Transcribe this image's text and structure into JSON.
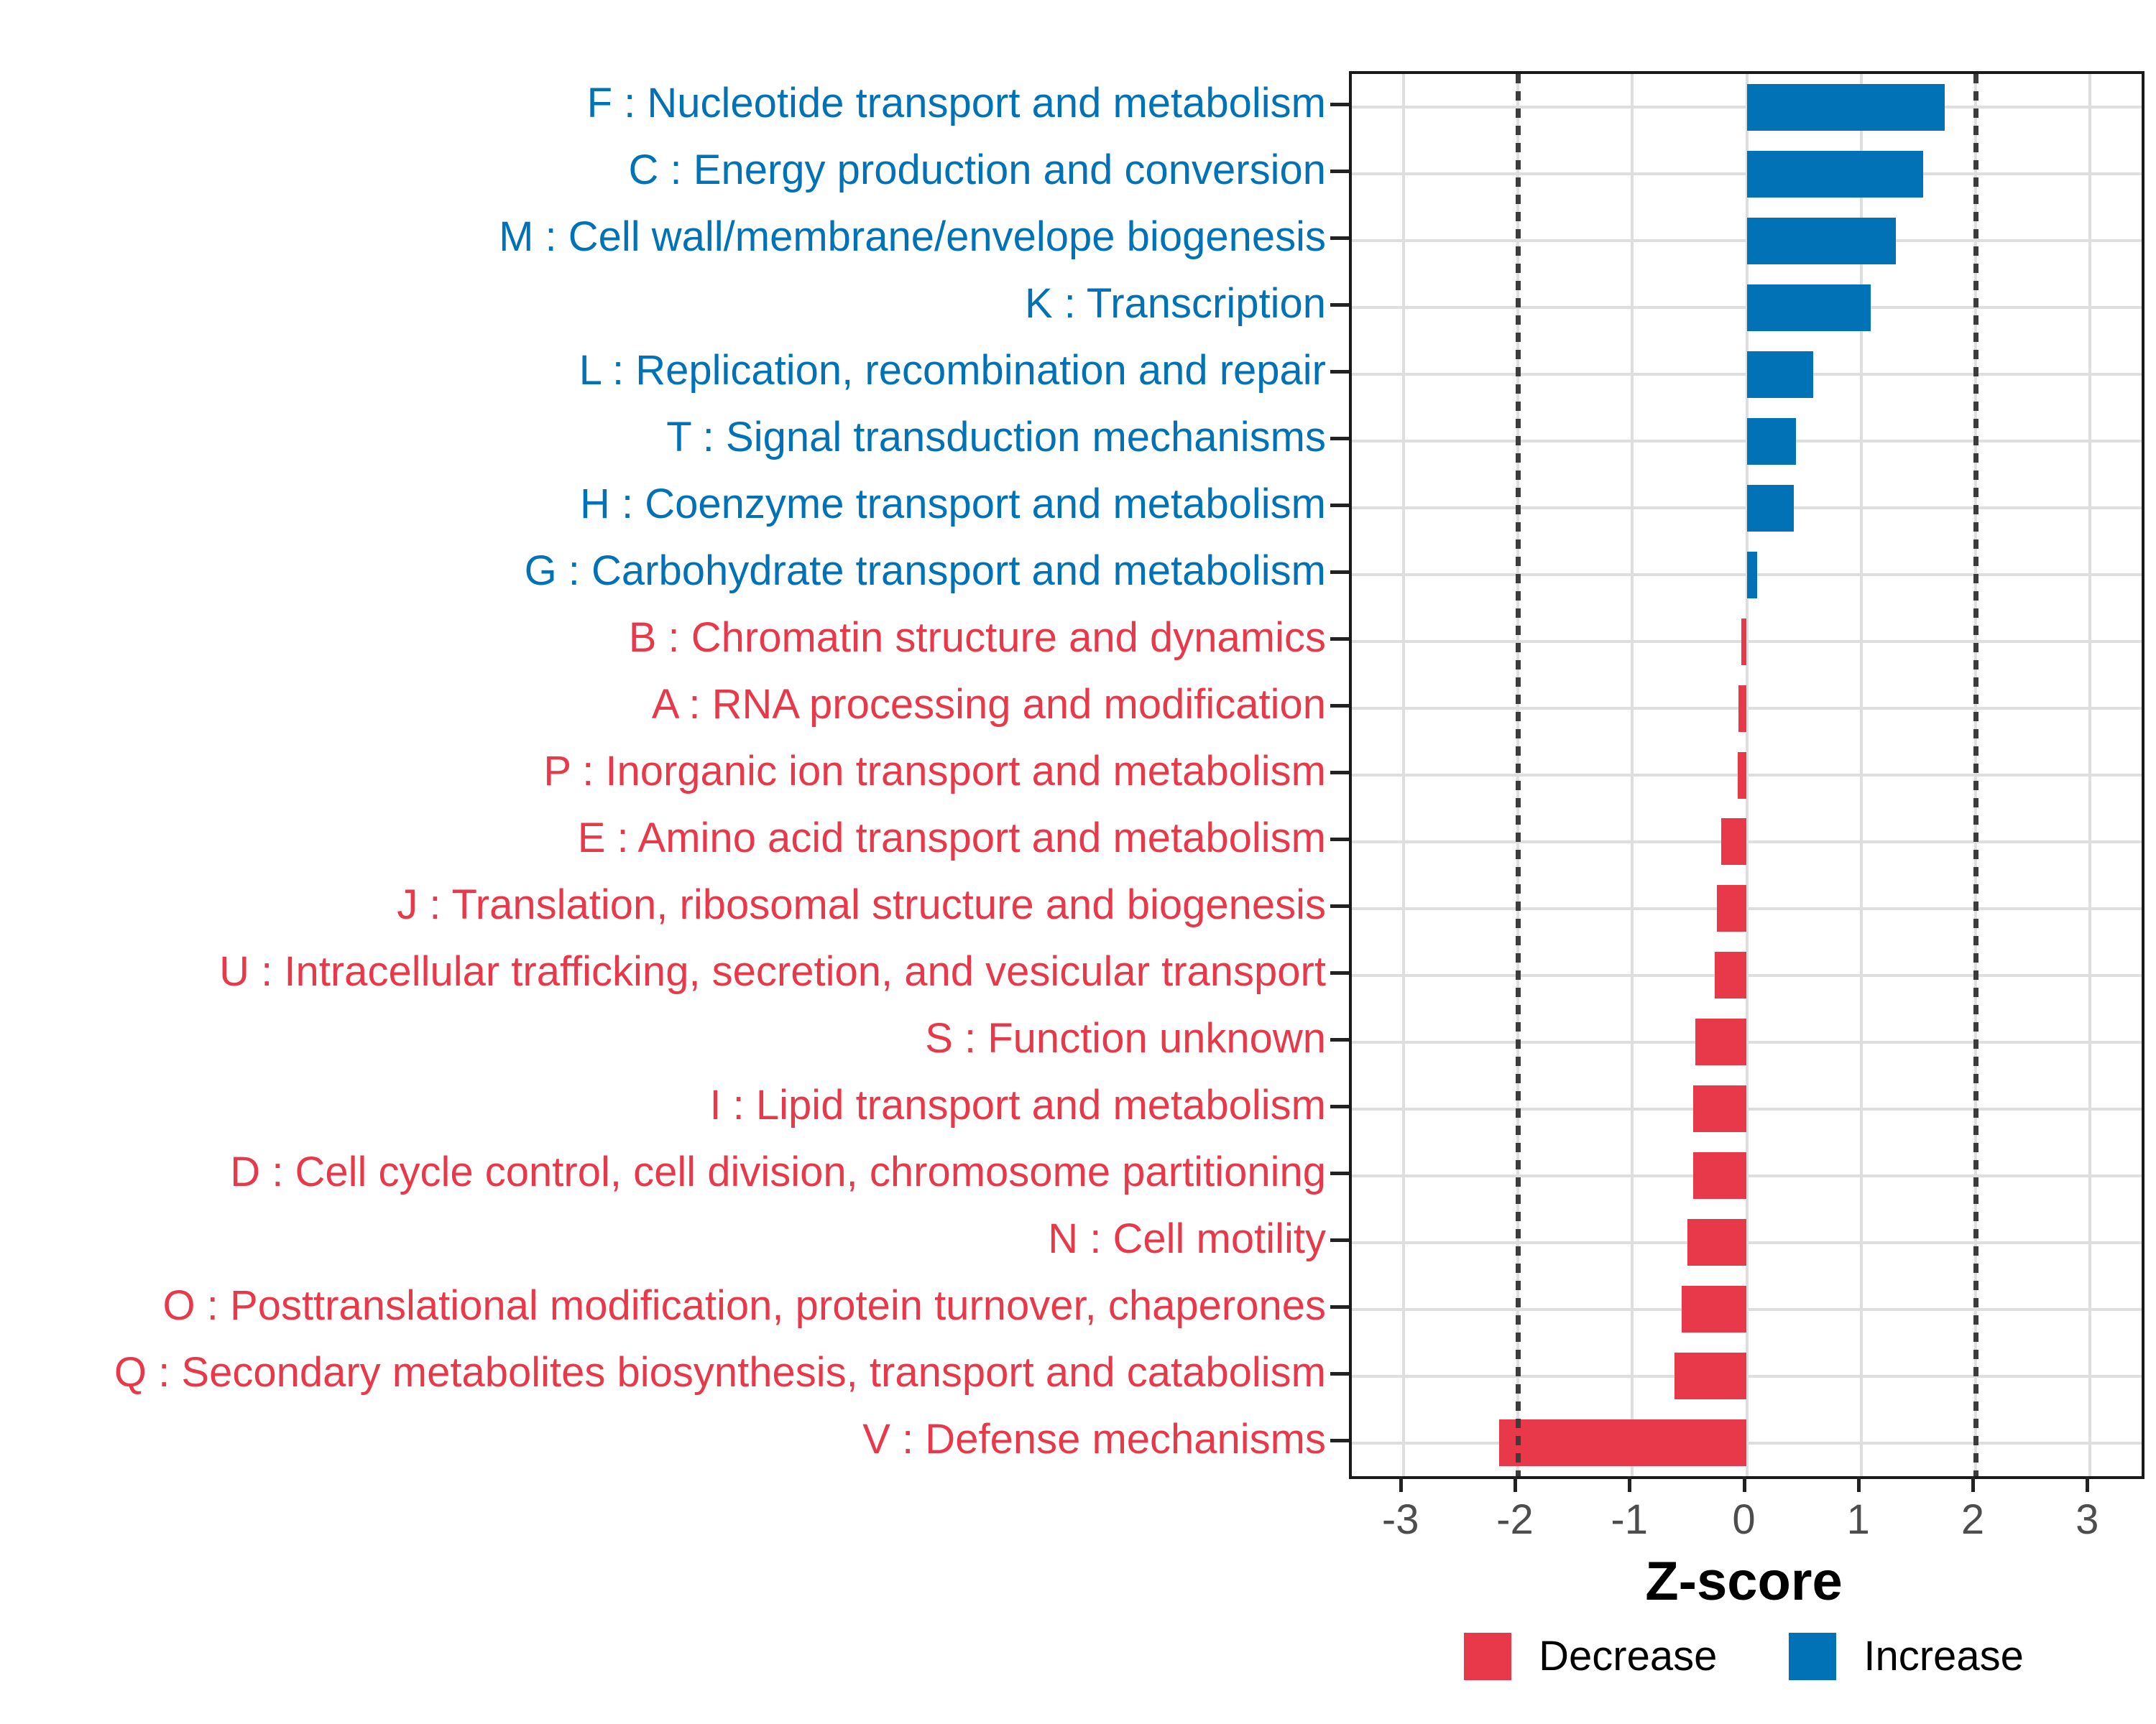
{
  "chart_data": {
    "type": "bar",
    "orientation": "horizontal",
    "title": "",
    "xlabel": "Z-score",
    "ylabel": "",
    "x_range": [
      -3.45,
      3.45
    ],
    "x_ticks": [
      -3,
      -2,
      -1,
      0,
      1,
      2,
      3
    ],
    "reference_lines": [
      -2,
      2
    ],
    "grid": "major",
    "colors": {
      "increase": "#0072B5",
      "decrease": "#E8394A",
      "gridline": "#dedede",
      "axis_text": "#4d4d4d",
      "panel_border": "#1a1a1a"
    },
    "bars": [
      {
        "code": "F",
        "label": "F : Nucleotide transport and metabolism",
        "value": 1.73,
        "direction": "increase"
      },
      {
        "code": "C",
        "label": "C : Energy production and conversion",
        "value": 1.54,
        "direction": "increase"
      },
      {
        "code": "M",
        "label": "M : Cell wall/membrane/envelope biogenesis",
        "value": 1.3,
        "direction": "increase"
      },
      {
        "code": "K",
        "label": "K : Transcription",
        "value": 1.08,
        "direction": "increase"
      },
      {
        "code": "L",
        "label": "L : Replication, recombination and repair",
        "value": 0.58,
        "direction": "increase"
      },
      {
        "code": "T",
        "label": "T : Signal transduction mechanisms",
        "value": 0.43,
        "direction": "increase"
      },
      {
        "code": "H",
        "label": "H : Coenzyme transport and metabolism",
        "value": 0.41,
        "direction": "increase"
      },
      {
        "code": "G",
        "label": "G : Carbohydrate transport and metabolism",
        "value": 0.09,
        "direction": "increase"
      },
      {
        "code": "B",
        "label": "B : Chromatin structure and dynamics",
        "value": -0.05,
        "direction": "decrease"
      },
      {
        "code": "A",
        "label": "A : RNA processing and modification",
        "value": -0.07,
        "direction": "decrease"
      },
      {
        "code": "P",
        "label": "P : Inorganic ion transport and metabolism",
        "value": -0.08,
        "direction": "decrease"
      },
      {
        "code": "E",
        "label": "E : Amino acid transport and metabolism",
        "value": -0.22,
        "direction": "decrease"
      },
      {
        "code": "J",
        "label": "J : Translation, ribosomal structure and biogenesis",
        "value": -0.26,
        "direction": "decrease"
      },
      {
        "code": "U",
        "label": "U : Intracellular trafficking, secretion, and vesicular transport",
        "value": -0.28,
        "direction": "decrease"
      },
      {
        "code": "S",
        "label": "S : Function unknown",
        "value": -0.45,
        "direction": "decrease"
      },
      {
        "code": "I",
        "label": "I : Lipid transport and metabolism",
        "value": -0.47,
        "direction": "decrease"
      },
      {
        "code": "D",
        "label": "D : Cell cycle control, cell division, chromosome partitioning",
        "value": -0.47,
        "direction": "decrease"
      },
      {
        "code": "N",
        "label": "N : Cell motility",
        "value": -0.52,
        "direction": "decrease"
      },
      {
        "code": "O",
        "label": "O : Posttranslational modification, protein turnover, chaperones",
        "value": -0.57,
        "direction": "decrease"
      },
      {
        "code": "Q",
        "label": "Q : Secondary metabolites biosynthesis, transport and catabolism",
        "value": -0.63,
        "direction": "decrease"
      },
      {
        "code": "V",
        "label": "V : Defense mechanisms",
        "value": -2.16,
        "direction": "decrease"
      }
    ],
    "legend": [
      {
        "key": "decrease",
        "label": "Decrease"
      },
      {
        "key": "increase",
        "label": "Increase"
      }
    ],
    "legend_position": "bottom-center"
  }
}
